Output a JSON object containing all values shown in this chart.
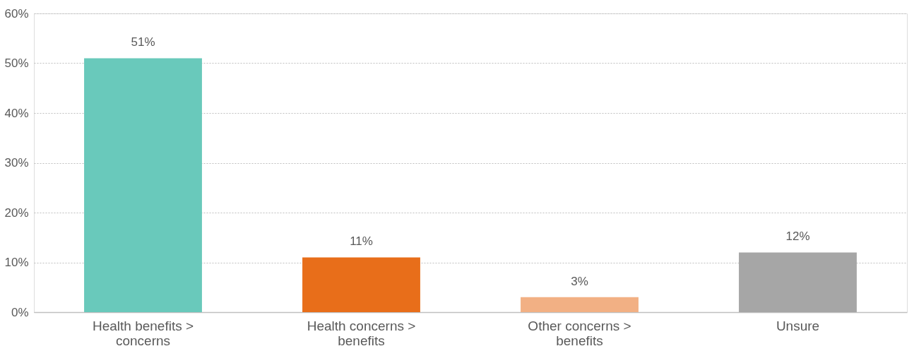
{
  "chart_data": {
    "type": "bar",
    "categories": [
      "Health benefits >\nconcerns",
      "Health concerns  >\nbenefits",
      "Other concerns >\nbenefits",
      "Unsure"
    ],
    "values": [
      51,
      11,
      3,
      12
    ],
    "colors": [
      "#69c9bb",
      "#e86e1a",
      "#f2b084",
      "#a6a6a6"
    ],
    "value_labels": [
      "51%",
      "11%",
      "3%",
      "12%"
    ],
    "ylim": [
      0,
      60
    ],
    "yticks": [
      {
        "value": 0,
        "label": "0%"
      },
      {
        "value": 10,
        "label": "10%"
      },
      {
        "value": 20,
        "label": "20%"
      },
      {
        "value": 30,
        "label": "30%"
      },
      {
        "value": 40,
        "label": "40%"
      },
      {
        "value": 50,
        "label": "50%"
      },
      {
        "value": 60,
        "label": "60%"
      }
    ],
    "grid": "y",
    "legend": false
  }
}
